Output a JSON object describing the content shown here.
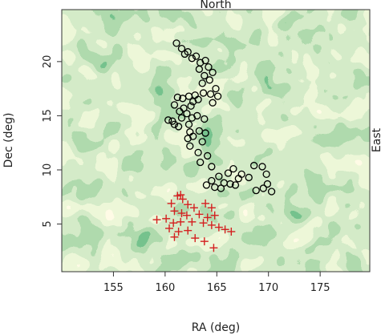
{
  "chart_data": {
    "type": "scatter",
    "xlabel": "RA (deg)",
    "ylabel": "Dec (deg)",
    "top_label": "North",
    "right_label": "East",
    "xlim": [
      150.0,
      179.8
    ],
    "ylim": [
      0.6,
      24.8
    ],
    "xticks": [
      155,
      160,
      165,
      170,
      175
    ],
    "yticks": [
      5,
      10,
      15,
      20
    ],
    "background": {
      "type": "filled-contour",
      "levels_colors": [
        "#fdf7c9",
        "#d8ecb0",
        "#a9d393",
        "#6db36a",
        "#2f8a46"
      ]
    },
    "series": [
      {
        "marker": "circle",
        "color": "#000000",
        "points": [
          [
            161.1,
            21.7
          ],
          [
            161.6,
            21.2
          ],
          [
            161.9,
            20.7
          ],
          [
            162.2,
            20.9
          ],
          [
            162.6,
            20.3
          ],
          [
            163.0,
            20.5
          ],
          [
            163.4,
            19.9
          ],
          [
            163.9,
            20.1
          ],
          [
            164.2,
            19.5
          ],
          [
            163.3,
            19.3
          ],
          [
            164.6,
            19.0
          ],
          [
            163.8,
            18.7
          ],
          [
            164.3,
            18.3
          ],
          [
            163.6,
            18.0
          ],
          [
            164.9,
            17.5
          ],
          [
            164.4,
            17.0
          ],
          [
            165.1,
            16.8
          ],
          [
            163.7,
            17.1
          ],
          [
            163.2,
            16.5
          ],
          [
            162.9,
            16.9
          ],
          [
            162.3,
            16.8
          ],
          [
            161.7,
            16.6
          ],
          [
            161.2,
            16.7
          ],
          [
            160.9,
            16.0
          ],
          [
            161.4,
            15.4
          ],
          [
            161.8,
            15.7
          ],
          [
            162.1,
            15.2
          ],
          [
            162.5,
            15.9
          ],
          [
            162.7,
            16.3
          ],
          [
            161.6,
            14.8
          ],
          [
            162.3,
            14.2
          ],
          [
            162.6,
            14.8
          ],
          [
            163.1,
            15.0
          ],
          [
            163.8,
            14.7
          ],
          [
            160.7,
            14.5
          ],
          [
            160.3,
            14.6
          ],
          [
            160.9,
            14.2
          ],
          [
            161.3,
            14.0
          ],
          [
            162.4,
            13.5
          ],
          [
            162.2,
            12.9
          ],
          [
            162.7,
            13.1
          ],
          [
            163.3,
            13.6
          ],
          [
            163.9,
            13.4
          ],
          [
            163.6,
            12.6
          ],
          [
            162.4,
            12.2
          ],
          [
            163.2,
            11.6
          ],
          [
            164.1,
            11.3
          ],
          [
            163.4,
            10.7
          ],
          [
            164.5,
            10.3
          ],
          [
            165.2,
            9.4
          ],
          [
            164.5,
            9.0
          ],
          [
            165.7,
            8.8
          ],
          [
            166.3,
            8.7
          ],
          [
            165.4,
            8.3
          ],
          [
            164.8,
            8.4
          ],
          [
            166.8,
            8.6
          ],
          [
            167.1,
            9.2
          ],
          [
            167.4,
            9.6
          ],
          [
            168.1,
            9.3
          ],
          [
            168.6,
            10.4
          ],
          [
            169.4,
            10.3
          ],
          [
            169.8,
            9.6
          ],
          [
            169.9,
            8.7
          ],
          [
            169.5,
            8.3
          ],
          [
            168.8,
            8.1
          ],
          [
            170.3,
            8.0
          ],
          [
            166.6,
            10.1
          ],
          [
            166.1,
            9.7
          ],
          [
            164.0,
            8.6
          ],
          [
            164.6,
            16.2
          ]
        ]
      },
      {
        "marker": "plus",
        "color": "#d42020",
        "points": [
          [
            161.2,
            7.6
          ],
          [
            161.7,
            7.3
          ],
          [
            161.5,
            7.7
          ],
          [
            160.6,
            6.9
          ],
          [
            162.2,
            6.8
          ],
          [
            162.8,
            6.5
          ],
          [
            163.9,
            6.9
          ],
          [
            164.5,
            6.5
          ],
          [
            160.9,
            6.2
          ],
          [
            161.6,
            6.0
          ],
          [
            162.1,
            5.8
          ],
          [
            163.3,
            5.9
          ],
          [
            164.1,
            5.6
          ],
          [
            164.8,
            5.8
          ],
          [
            159.2,
            5.4
          ],
          [
            160.1,
            5.5
          ],
          [
            160.8,
            5.1
          ],
          [
            161.5,
            5.2
          ],
          [
            162.6,
            5.2
          ],
          [
            163.7,
            5.1
          ],
          [
            164.5,
            4.9
          ],
          [
            165.2,
            4.7
          ],
          [
            160.4,
            4.6
          ],
          [
            161.3,
            4.3
          ],
          [
            162.2,
            4.4
          ],
          [
            165.8,
            4.5
          ],
          [
            166.4,
            4.3
          ],
          [
            160.9,
            3.8
          ],
          [
            162.9,
            3.7
          ],
          [
            163.8,
            3.4
          ],
          [
            164.7,
            2.8
          ]
        ]
      }
    ]
  }
}
